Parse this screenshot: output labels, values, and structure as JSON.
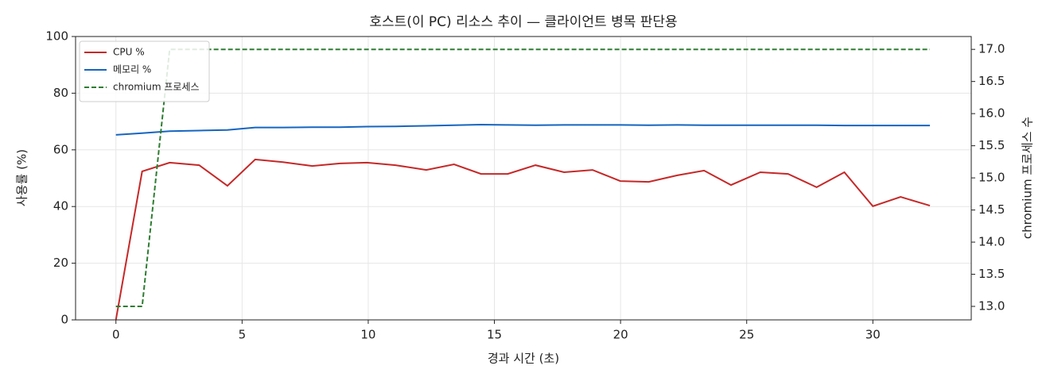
{
  "chart_data": {
    "type": "line",
    "title": "호스트(이 PC) 리소스 추이 — 클라이언트 병목 판단용",
    "x_label": "경과 시간 (초)",
    "y_label": "사용률 (%)",
    "y2_label": "chromium 프로세스 수",
    "x": [
      0,
      1.04,
      2.13,
      3.3,
      4.42,
      5.52,
      6.62,
      7.78,
      8.88,
      9.95,
      11.08,
      12.3,
      13.4,
      14.47,
      15.53,
      16.63,
      17.76,
      18.89,
      19.99,
      21.12,
      22.25,
      23.31,
      24.38,
      25.54,
      26.64,
      27.77,
      28.87,
      30,
      31.1,
      32.26
    ],
    "series": [
      {
        "name": "CPU %",
        "color": "#c62828",
        "axis": "y",
        "dash": false,
        "values": [
          0,
          52.4,
          55.5,
          54.6,
          47.3,
          56.6,
          55.7,
          54.3,
          55.2,
          55.5,
          54.6,
          52.9,
          54.9,
          51.5,
          51.5,
          54.6,
          52.1,
          52.9,
          49.0,
          48.7,
          51.0,
          52.7,
          47.6,
          52.1,
          51.5,
          46.8,
          52.1,
          40.1,
          43.4,
          40.3
        ]
      },
      {
        "name": "메모리 %",
        "color": "#1565c0",
        "axis": "y",
        "dash": false,
        "values": [
          65.3,
          65.9,
          66.6,
          66.8,
          67.0,
          67.9,
          67.9,
          68.0,
          68.0,
          68.2,
          68.3,
          68.5,
          68.7,
          68.9,
          68.8,
          68.7,
          68.8,
          68.8,
          68.8,
          68.7,
          68.8,
          68.7,
          68.7,
          68.7,
          68.7,
          68.7,
          68.6,
          68.6,
          68.6,
          68.6
        ]
      },
      {
        "name": "chromium 프로세스",
        "color": "#2e7d32",
        "axis": "y2",
        "dash": true,
        "values": [
          13,
          13,
          17,
          17,
          17,
          17,
          17,
          17,
          17,
          17,
          17,
          17,
          17,
          17,
          17,
          17,
          17,
          17,
          17,
          17,
          17,
          17,
          17,
          17,
          17,
          17,
          17,
          17,
          17,
          17
        ]
      }
    ],
    "xlim": [
      -1.6,
      33.9
    ],
    "xticks": [
      0,
      5,
      10,
      15,
      20,
      25,
      30
    ],
    "ylim": [
      0,
      100
    ],
    "yticks": [
      0,
      20,
      40,
      60,
      80,
      100
    ],
    "y2lim": [
      12.79,
      17.2
    ],
    "y2ticks": [
      {
        "value": 13,
        "label": "13.0"
      },
      13.5,
      {
        "value": 14,
        "label": "14.0"
      },
      14.5,
      {
        "value": 15,
        "label": "15.0"
      },
      15.5,
      {
        "value": 16,
        "label": "16.0"
      },
      16.5,
      {
        "value": 17,
        "label": "17.0"
      }
    ],
    "grid": true,
    "legend": "upper left"
  }
}
